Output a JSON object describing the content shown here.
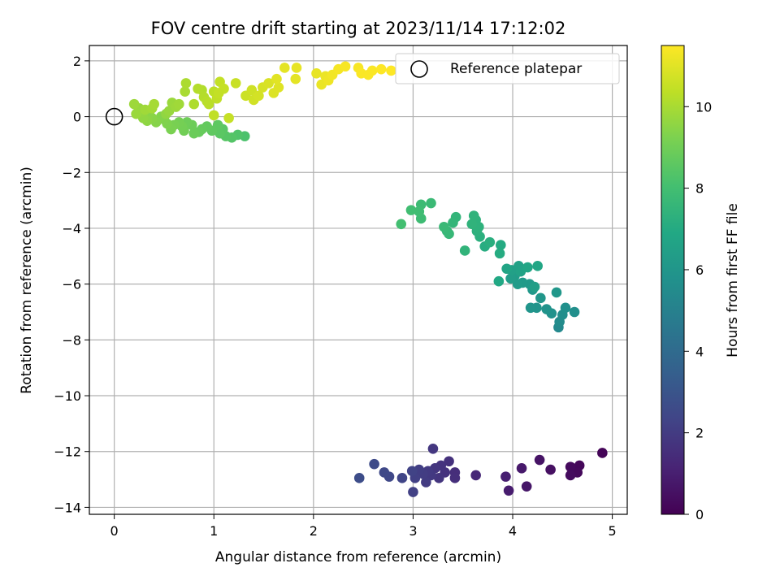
{
  "chart_data": {
    "type": "scatter",
    "title": "FOV centre drift starting at 2023/11/14 17:12:02",
    "xlabel": "Angular distance from reference (arcmin)",
    "ylabel": "Rotation from reference (arcmin)",
    "xlim": [
      -0.25,
      5.15
    ],
    "ylim": [
      -14.25,
      2.55
    ],
    "x_ticks": [
      0,
      1,
      2,
      3,
      4,
      5
    ],
    "x_tick_labels": [
      "0",
      "1",
      "2",
      "3",
      "4",
      "5"
    ],
    "y_ticks": [
      2,
      0,
      -2,
      -4,
      -6,
      -8,
      -10,
      -12,
      -14
    ],
    "y_tick_labels": [
      "2",
      "0",
      "−2",
      "−4",
      "−6",
      "−8",
      "−10",
      "−12",
      "−14"
    ],
    "grid": true,
    "legend": {
      "placement": "top-right",
      "entries": [
        "Reference platepar"
      ]
    },
    "reference_point": {
      "x": 0,
      "y": 0
    },
    "colorbar": {
      "label": "Hours from first FF file",
      "colormap": "viridis",
      "range": [
        0,
        11.5
      ],
      "ticks": [
        0,
        2,
        4,
        6,
        8,
        10
      ],
      "tick_labels": [
        "0",
        "2",
        "4",
        "6",
        "8",
        "10"
      ]
    },
    "series": [
      {
        "hours_range": [
          0,
          3
        ],
        "points": [
          [
            4.9,
            -12.05,
            0.1
          ],
          [
            4.67,
            -12.5,
            0.2
          ],
          [
            4.65,
            -12.75,
            0.25
          ],
          [
            4.58,
            -12.55,
            0.3
          ],
          [
            4.58,
            -12.85,
            0.35
          ],
          [
            4.38,
            -12.65,
            0.5
          ],
          [
            4.27,
            -12.3,
            0.6
          ],
          [
            4.14,
            -13.25,
            0.7
          ],
          [
            4.09,
            -12.6,
            0.8
          ],
          [
            3.96,
            -13.4,
            0.9
          ],
          [
            3.93,
            -12.9,
            1.0
          ],
          [
            3.63,
            -12.85,
            1.3
          ],
          [
            3.42,
            -12.75,
            1.5
          ],
          [
            3.42,
            -12.95,
            1.55
          ],
          [
            3.36,
            -12.35,
            1.6
          ],
          [
            3.32,
            -12.75,
            1.65
          ],
          [
            3.28,
            -12.5,
            1.7
          ],
          [
            3.26,
            -12.95,
            1.75
          ],
          [
            3.22,
            -12.6,
            1.8
          ],
          [
            3.2,
            -11.9,
            1.85
          ],
          [
            3.18,
            -12.85,
            1.9
          ],
          [
            3.15,
            -12.7,
            1.95
          ],
          [
            3.13,
            -13.1,
            2.0
          ],
          [
            3.1,
            -12.8,
            2.05
          ],
          [
            3.06,
            -12.65,
            2.1
          ],
          [
            3.02,
            -12.95,
            2.15
          ],
          [
            3.0,
            -13.45,
            2.2
          ],
          [
            2.99,
            -12.7,
            2.25
          ],
          [
            2.89,
            -12.95,
            2.35
          ],
          [
            2.76,
            -12.9,
            2.45
          ],
          [
            2.71,
            -12.75,
            2.5
          ],
          [
            2.61,
            -12.45,
            2.6
          ],
          [
            2.46,
            -12.95,
            2.7
          ]
        ]
      },
      {
        "hours_range": [
          5,
          8
        ],
        "points": [
          [
            4.46,
            -7.55,
            5.4
          ],
          [
            4.47,
            -7.35,
            5.5
          ],
          [
            4.5,
            -7.1,
            5.6
          ],
          [
            4.62,
            -7.0,
            5.65
          ],
          [
            4.53,
            -6.85,
            5.7
          ],
          [
            4.39,
            -7.05,
            5.8
          ],
          [
            4.34,
            -6.9,
            5.85
          ],
          [
            4.24,
            -6.85,
            5.9
          ],
          [
            4.18,
            -6.85,
            5.95
          ],
          [
            4.28,
            -6.5,
            6.0
          ],
          [
            4.44,
            -6.3,
            6.05
          ],
          [
            4.2,
            -6.2,
            6.1
          ],
          [
            4.17,
            -6.0,
            6.15
          ],
          [
            4.1,
            -5.95,
            6.2
          ],
          [
            4.05,
            -6.0,
            6.25
          ],
          [
            4.02,
            -5.7,
            6.3
          ],
          [
            3.98,
            -5.8,
            6.35
          ],
          [
            4.22,
            -6.1,
            6.4
          ],
          [
            3.99,
            -5.5,
            6.5
          ],
          [
            4.06,
            -5.35,
            6.55
          ],
          [
            4.08,
            -5.55,
            6.6
          ],
          [
            3.94,
            -5.45,
            6.7
          ],
          [
            4.15,
            -5.4,
            6.75
          ],
          [
            4.25,
            -5.35,
            6.8
          ],
          [
            3.86,
            -5.9,
            6.9
          ],
          [
            3.88,
            -4.6,
            7.0
          ],
          [
            3.87,
            -4.9,
            7.05
          ],
          [
            3.72,
            -4.65,
            7.1
          ],
          [
            3.77,
            -4.5,
            7.2
          ],
          [
            3.67,
            -4.3,
            7.25
          ],
          [
            3.64,
            -4.1,
            7.3
          ],
          [
            3.63,
            -3.7,
            7.35
          ],
          [
            3.61,
            -3.55,
            7.4
          ],
          [
            3.52,
            -4.8,
            7.45
          ],
          [
            3.43,
            -3.6,
            7.5
          ],
          [
            3.4,
            -3.8,
            7.55
          ],
          [
            3.34,
            -4.1,
            7.6
          ],
          [
            3.36,
            -4.2,
            7.65
          ],
          [
            3.31,
            -3.95,
            7.7
          ],
          [
            3.18,
            -3.1,
            7.75
          ],
          [
            3.08,
            -3.15,
            7.8
          ],
          [
            3.08,
            -3.65,
            7.85
          ],
          [
            3.06,
            -3.4,
            7.9
          ],
          [
            2.98,
            -3.35,
            7.95
          ],
          [
            2.88,
            -3.85,
            8.0
          ],
          [
            3.66,
            -3.95,
            7.35
          ],
          [
            3.59,
            -3.85,
            7.4
          ]
        ]
      },
      {
        "hours_range": [
          8,
          11.5
        ],
        "points": [
          [
            1.31,
            -0.7,
            8.2
          ],
          [
            1.24,
            -0.65,
            8.3
          ],
          [
            1.18,
            -0.75,
            8.4
          ],
          [
            1.12,
            -0.7,
            8.45
          ],
          [
            1.09,
            -0.45,
            8.5
          ],
          [
            1.06,
            -0.6,
            8.55
          ],
          [
            1.04,
            -0.3,
            8.6
          ],
          [
            0.98,
            -0.5,
            8.65
          ],
          [
            0.93,
            -0.35,
            8.7
          ],
          [
            0.88,
            -0.45,
            8.75
          ],
          [
            0.85,
            -0.55,
            8.8
          ],
          [
            0.8,
            -0.6,
            8.85
          ],
          [
            0.78,
            -0.3,
            8.9
          ],
          [
            0.73,
            -0.2,
            8.95
          ],
          [
            0.7,
            -0.5,
            9.0
          ],
          [
            0.68,
            -0.35,
            9.05
          ],
          [
            0.65,
            -0.2,
            9.1
          ],
          [
            0.6,
            -0.3,
            9.15
          ],
          [
            0.57,
            -0.45,
            9.2
          ],
          [
            0.53,
            -0.25,
            9.25
          ],
          [
            0.5,
            -0.1,
            9.3
          ],
          [
            0.47,
            0.0,
            9.35
          ],
          [
            0.42,
            -0.2,
            9.4
          ],
          [
            0.38,
            -0.05,
            9.45
          ],
          [
            0.35,
            0.1,
            9.5
          ],
          [
            0.33,
            -0.15,
            9.55
          ],
          [
            0.29,
            -0.05,
            9.6
          ],
          [
            0.27,
            0.15,
            9.65
          ],
          [
            0.25,
            0.3,
            9.7
          ],
          [
            0.22,
            0.1,
            9.75
          ],
          [
            0.2,
            0.45,
            9.8
          ],
          [
            0.31,
            0.25,
            9.85
          ],
          [
            0.38,
            0.3,
            9.9
          ],
          [
            0.4,
            0.45,
            9.95
          ],
          [
            0.52,
            0.1,
            9.6
          ],
          [
            0.55,
            0.2,
            9.7
          ],
          [
            0.58,
            0.5,
            9.75
          ],
          [
            0.62,
            0.35,
            9.8
          ],
          [
            0.65,
            0.45,
            9.85
          ],
          [
            0.71,
            0.9,
            10.0
          ],
          [
            0.72,
            1.2,
            10.05
          ],
          [
            0.8,
            0.45,
            10.1
          ],
          [
            0.88,
            0.95,
            10.15
          ],
          [
            0.9,
            0.7,
            10.2
          ],
          [
            0.93,
            0.55,
            10.25
          ],
          [
            0.95,
            0.45,
            10.3
          ],
          [
            1.0,
            0.9,
            10.35
          ],
          [
            1.03,
            0.65,
            10.4
          ],
          [
            1.06,
            1.25,
            10.45
          ],
          [
            1.1,
            1.0,
            10.5
          ],
          [
            1.15,
            -0.05,
            10.5
          ],
          [
            1.22,
            1.2,
            10.55
          ],
          [
            1.32,
            0.75,
            10.6
          ],
          [
            1.38,
            0.95,
            10.65
          ],
          [
            1.4,
            0.6,
            10.7
          ],
          [
            1.45,
            0.75,
            10.75
          ],
          [
            1.49,
            1.05,
            10.8
          ],
          [
            1.55,
            1.2,
            10.85
          ],
          [
            1.6,
            0.85,
            10.9
          ],
          [
            1.65,
            1.05,
            10.95
          ],
          [
            1.63,
            1.35,
            11.0
          ],
          [
            1.71,
            1.75,
            11.05
          ],
          [
            1.83,
            1.75,
            11.1
          ],
          [
            1.82,
            1.35,
            11.05
          ],
          [
            2.03,
            1.55,
            11.1
          ],
          [
            2.08,
            1.15,
            11.15
          ],
          [
            2.12,
            1.45,
            11.2
          ],
          [
            2.15,
            1.3,
            11.25
          ],
          [
            2.19,
            1.5,
            11.3
          ],
          [
            2.25,
            1.7,
            11.35
          ],
          [
            2.32,
            1.8,
            11.4
          ],
          [
            2.45,
            1.75,
            11.4
          ],
          [
            2.48,
            1.55,
            11.45
          ],
          [
            2.55,
            1.5,
            11.45
          ],
          [
            2.59,
            1.65,
            11.45
          ],
          [
            2.68,
            1.7,
            11.5
          ],
          [
            2.78,
            1.65,
            11.5
          ],
          [
            1.0,
            0.05,
            10.4
          ],
          [
            1.05,
            0.85,
            10.45
          ],
          [
            0.84,
            1.0,
            10.2
          ]
        ]
      }
    ]
  }
}
